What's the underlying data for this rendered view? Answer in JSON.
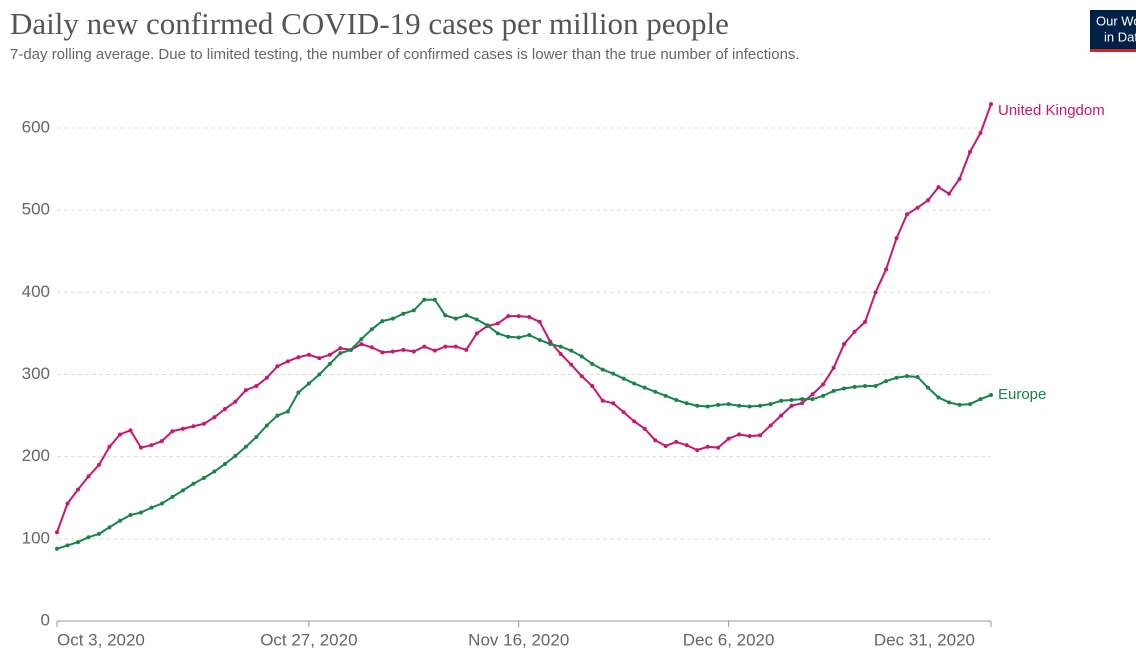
{
  "chart_data": {
    "type": "line",
    "title": "Daily new confirmed COVID-19 cases per million people",
    "subtitle": "7-day rolling average. Due to limited testing, the number of confirmed cases is lower than the true number of infections.",
    "logo": [
      "Our World",
      "in Data"
    ],
    "categories": [
      "Oct 3, 2020",
      null,
      null,
      null,
      null,
      null,
      null,
      null,
      null,
      null,
      null,
      null,
      null,
      null,
      null,
      null,
      null,
      null,
      null,
      null,
      null,
      null,
      null,
      null,
      "Oct 27, 2020",
      null,
      null,
      null,
      null,
      null,
      null,
      null,
      null,
      null,
      null,
      null,
      null,
      null,
      null,
      null,
      null,
      null,
      null,
      null,
      "Nov 16, 2020",
      null,
      null,
      null,
      null,
      null,
      null,
      null,
      null,
      null,
      null,
      null,
      null,
      null,
      null,
      null,
      null,
      null,
      null,
      null,
      "Dec 6, 2020",
      null,
      null,
      null,
      null,
      null,
      null,
      null,
      null,
      null,
      null,
      null,
      null,
      null,
      null,
      null,
      null,
      null,
      null,
      null,
      null,
      null,
      null,
      null,
      null,
      "Dec 31, 2020"
    ],
    "ylim": [
      0,
      600
    ],
    "yticks": [
      0,
      100,
      200,
      300,
      400,
      500,
      600
    ],
    "grid": true,
    "series": [
      {
        "name": "United Kingdom",
        "color": "#c8176e",
        "values": [
          108,
          143,
          160,
          176,
          190,
          212,
          227,
          232,
          211,
          214,
          219,
          231,
          234,
          237,
          240,
          248,
          258,
          267,
          281,
          286,
          296,
          310,
          316,
          321,
          324,
          320,
          324,
          332,
          330,
          337,
          333,
          327,
          328,
          330,
          328,
          334,
          329,
          334,
          334,
          330,
          350,
          359,
          362,
          371,
          371,
          370,
          364,
          340,
          325,
          312,
          298,
          286,
          268,
          265,
          254,
          243,
          234,
          220,
          213,
          218,
          214,
          208,
          212,
          211,
          222,
          227,
          225,
          226,
          238,
          250,
          262,
          265,
          276,
          288,
          308,
          337,
          352,
          364,
          400,
          428,
          466,
          495,
          503,
          512,
          528,
          520,
          538,
          571,
          594,
          629
        ]
      },
      {
        "name": "Europe",
        "color": "#18844a",
        "values": [
          88,
          92,
          96,
          102,
          106,
          114,
          122,
          129,
          132,
          138,
          143,
          151,
          159,
          167,
          174,
          182,
          191,
          201,
          212,
          224,
          238,
          250,
          255,
          278,
          289,
          300,
          313,
          326,
          330,
          343,
          355,
          365,
          368,
          374,
          378,
          391,
          391,
          372,
          368,
          372,
          367,
          360,
          350,
          346,
          345,
          348,
          342,
          337,
          334,
          329,
          322,
          313,
          306,
          301,
          295,
          289,
          284,
          279,
          274,
          269,
          265,
          262,
          261,
          263,
          264,
          262,
          261,
          262,
          264,
          268,
          269,
          270,
          270,
          274,
          280,
          283,
          285,
          286,
          286,
          292,
          296,
          298,
          297,
          284,
          272,
          266,
          263,
          264,
          270,
          275
        ]
      }
    ]
  }
}
